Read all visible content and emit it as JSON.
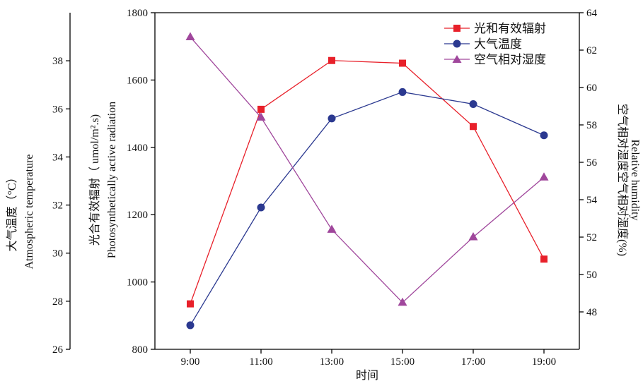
{
  "chart_data": {
    "type": "line",
    "x": [
      "9:00",
      "11:00",
      "13:00",
      "15:00",
      "17:00",
      "19:00"
    ],
    "xlabel": "时间",
    "axes": {
      "temperature": {
        "title_cn": "大气温度（°C）",
        "title_en": "Atmospheric temperature",
        "ylim": [
          26,
          40
        ],
        "ticks": [
          "26",
          "28",
          "30",
          "32",
          "34",
          "36",
          "38"
        ]
      },
      "radiation": {
        "title_cn": "光合有效辐射（ umol/m².s)",
        "title_en": "Photosynthetically active radiation",
        "ylim": [
          800,
          1800
        ],
        "ticks": [
          "800",
          "1000",
          "1200",
          "1400",
          "1600",
          "1800"
        ]
      },
      "humidity": {
        "title_cn": "空气相对湿度空气相对湿度(%)",
        "title_en": "Relative humidity",
        "ylim": [
          46,
          64
        ],
        "ticks": [
          "48",
          "50",
          "52",
          "54",
          "56",
          "58",
          "60",
          "62",
          "64"
        ]
      }
    },
    "series": [
      {
        "name": "光和有效辐射",
        "axis": "radiation",
        "color": "#e8202a",
        "marker": "square",
        "values": [
          935,
          1513,
          1658,
          1650,
          1462,
          1068
        ]
      },
      {
        "name": "大气温度",
        "axis": "temperature",
        "color": "#2b3990",
        "marker": "circle",
        "values": [
          27.0,
          31.9,
          35.6,
          36.7,
          36.2,
          34.9
        ]
      },
      {
        "name": "空气相对湿度",
        "axis": "humidity",
        "color": "#a0479c",
        "marker": "triangle",
        "values": [
          62.7,
          58.4,
          52.4,
          48.5,
          52.0,
          55.2
        ]
      }
    ],
    "legend_position": "top-right",
    "grid": false
  }
}
